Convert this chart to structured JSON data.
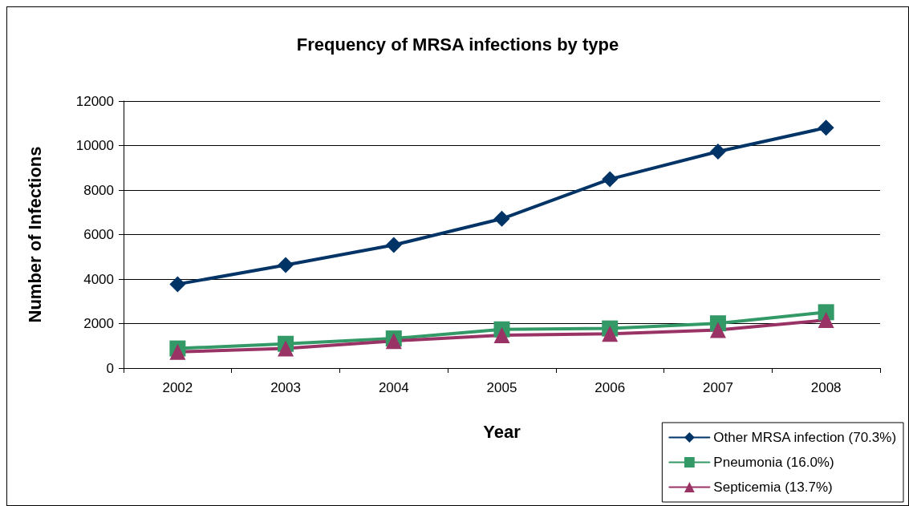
{
  "chart_data": {
    "type": "line",
    "title": "Frequency of MRSA infections by type",
    "xlabel": "Year",
    "ylabel": "Number of Infections",
    "categories": [
      "2002",
      "2003",
      "2004",
      "2005",
      "2006",
      "2007",
      "2008"
    ],
    "series": [
      {
        "name": "Other MRSA infection (70.3%)",
        "color": "#003366",
        "marker": "diamond",
        "values": [
          3770,
          4630,
          5530,
          6710,
          8490,
          9730,
          10800
        ]
      },
      {
        "name": "Pneumonia (16.0%)",
        "color": "#339966",
        "marker": "square",
        "values": [
          880,
          1090,
          1330,
          1740,
          1780,
          2010,
          2510
        ]
      },
      {
        "name": "Septicemia (13.7%)",
        "color": "#993366",
        "marker": "triangle",
        "values": [
          730,
          880,
          1220,
          1480,
          1540,
          1710,
          2160
        ]
      }
    ],
    "ylim": [
      0,
      12000
    ],
    "yticks": [
      0,
      2000,
      4000,
      6000,
      8000,
      10000,
      12000
    ],
    "grid": "y",
    "legend": "bottom right",
    "line_style": "solid"
  }
}
